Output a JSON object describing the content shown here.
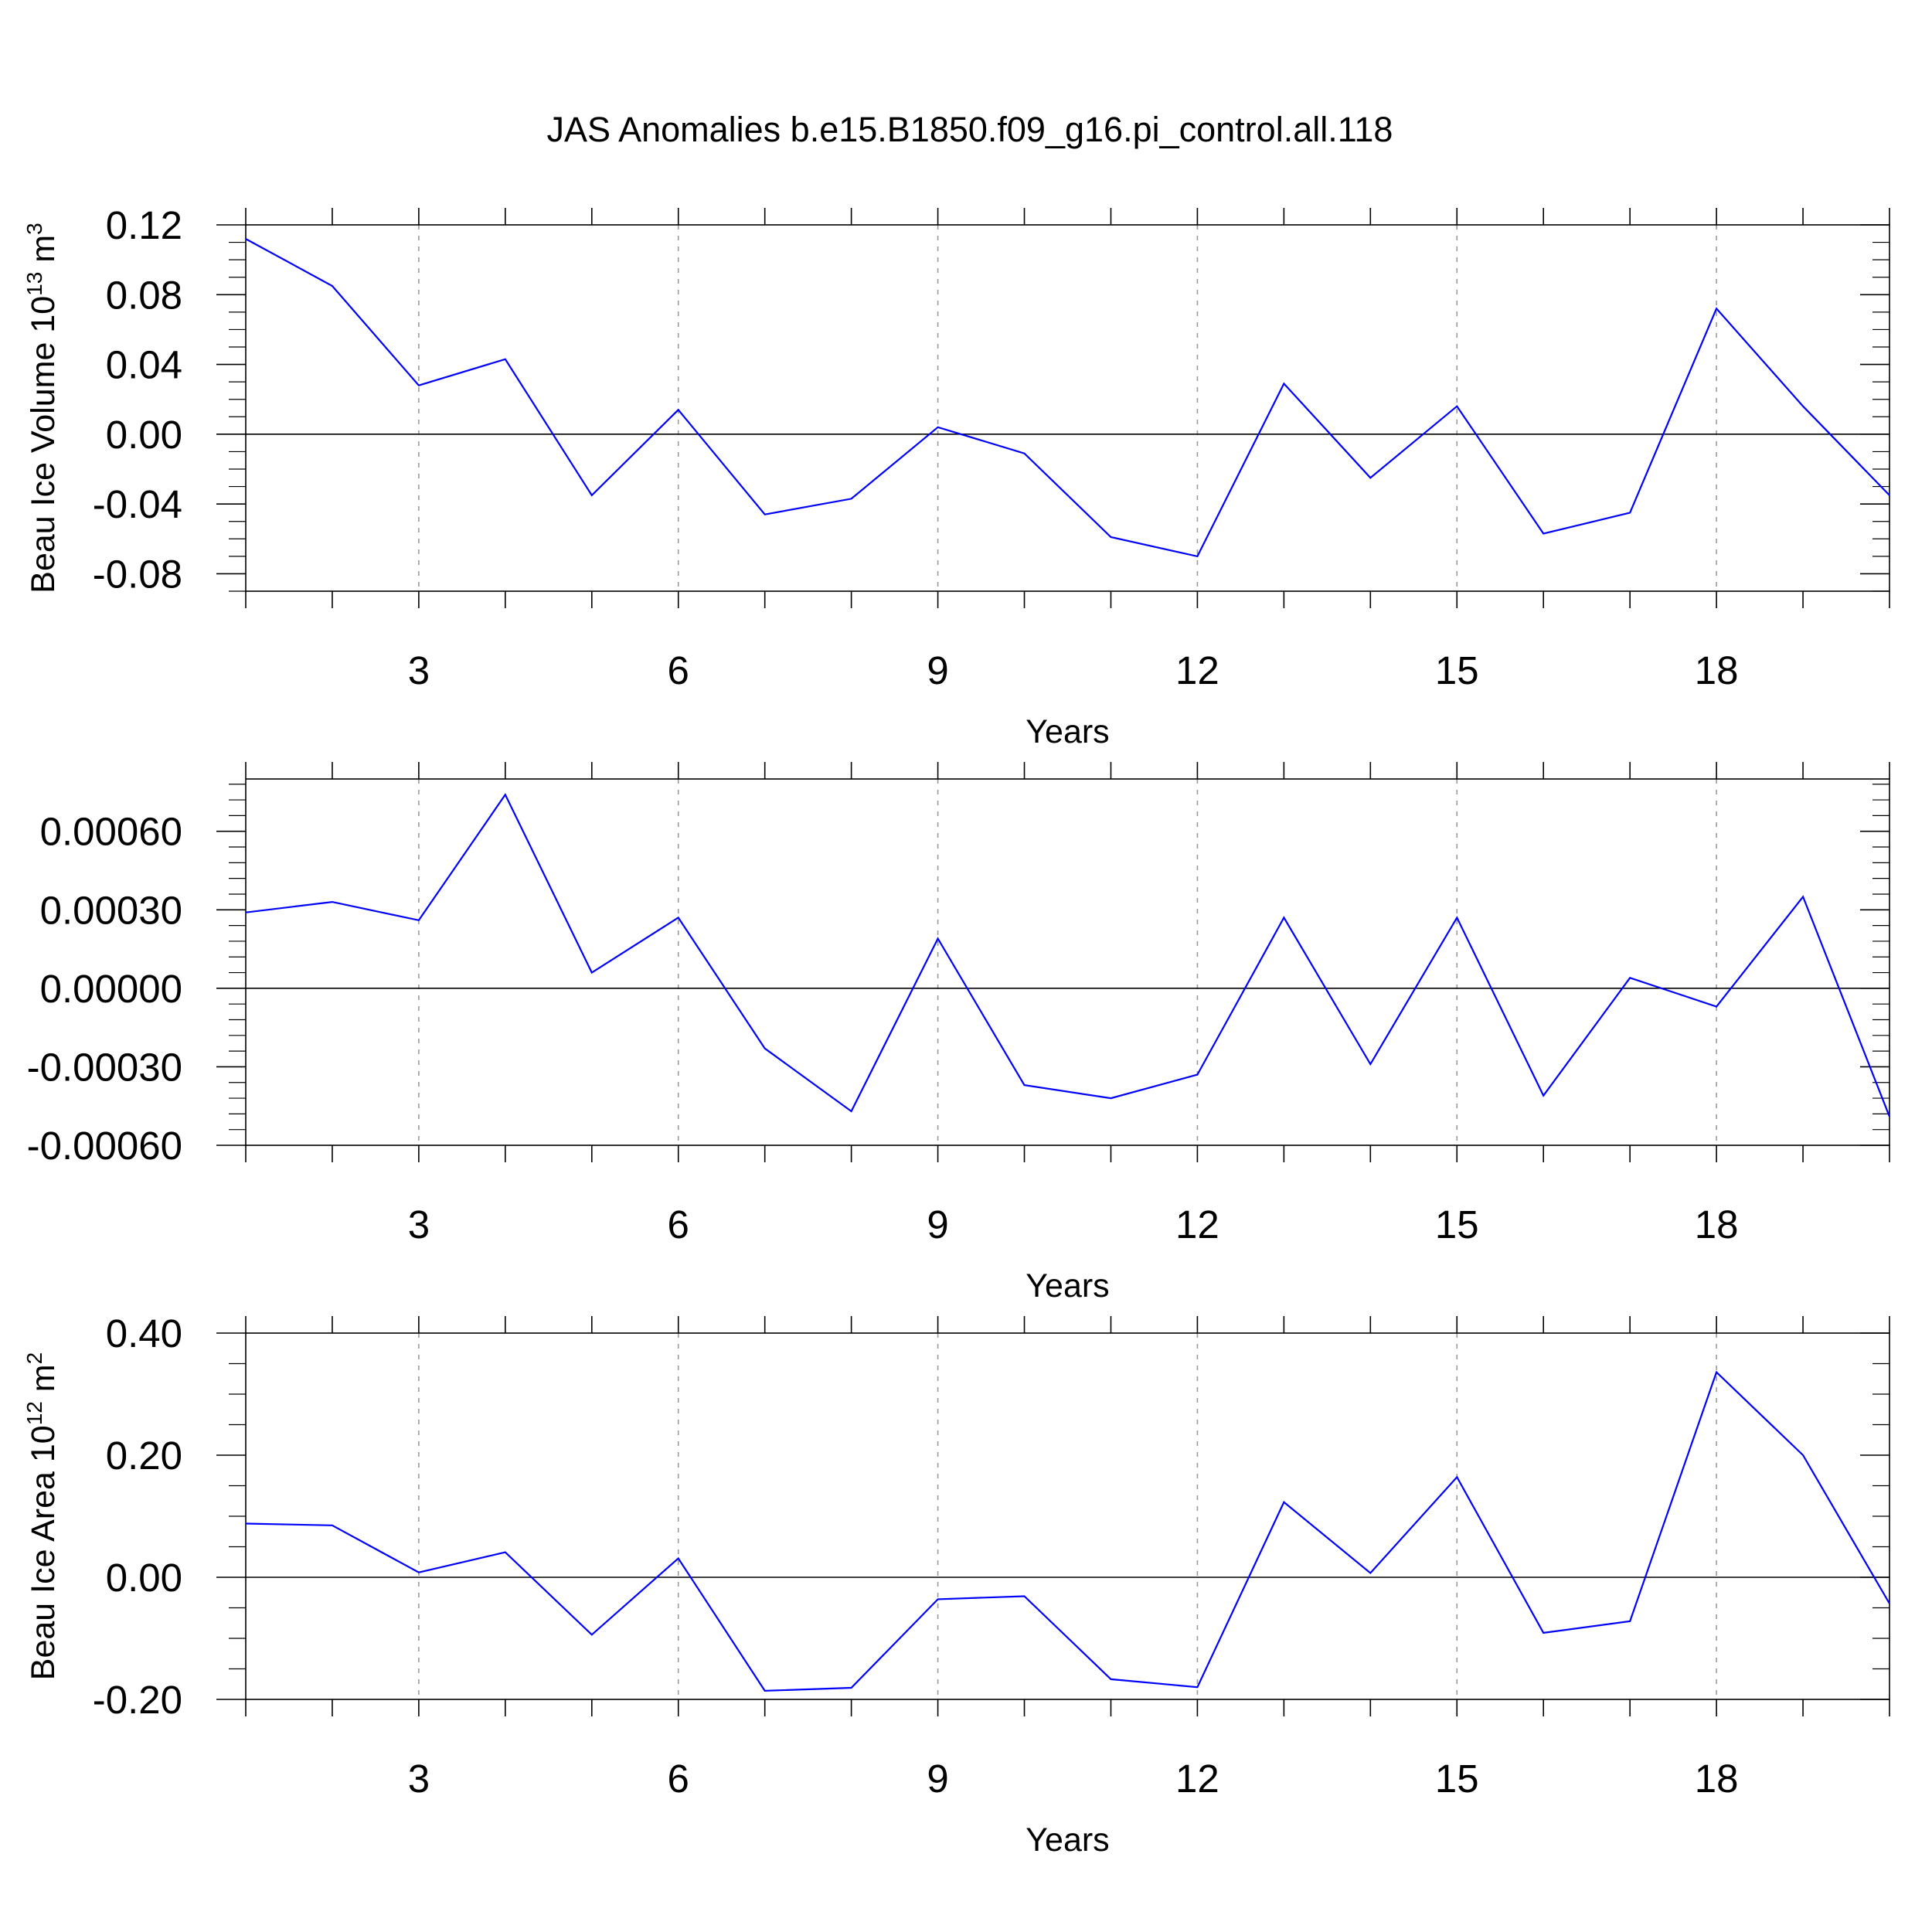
{
  "title": "JAS Anomalies b.e15.B1850.f09_g16.pi_control.all.118",
  "colors": {
    "series": "#0000ff",
    "grid": "#9a9a9a",
    "axes": "#000000"
  },
  "chart_data": [
    {
      "type": "line",
      "ylabel": "Beau Ice Volume 10",
      "ylabel_sup": "13",
      "ylabel_unit": " m",
      "ylabel_unit_sup": "3",
      "xlabel": "Years",
      "xlim": [
        1,
        20
      ],
      "ylim": [
        -0.09,
        0.12
      ],
      "y_ticks": [
        "-0.08",
        "-0.04",
        "0.00",
        "0.04",
        "0.08",
        "0.12"
      ],
      "y_tick_values": [
        -0.08,
        -0.04,
        0.0,
        0.04,
        0.08,
        0.12
      ],
      "x_ticks": [
        "3",
        "6",
        "9",
        "12",
        "15",
        "18"
      ],
      "x_tick_values": [
        3,
        6,
        9,
        12,
        15,
        18
      ],
      "vertical_grid": "dashed at labeled years",
      "series": [
        {
          "x": [
            1,
            2,
            3,
            4,
            5,
            6,
            7,
            8,
            9,
            10,
            11,
            12,
            13,
            14,
            15,
            16,
            17,
            18,
            19,
            20
          ],
          "values": [
            0.112,
            0.085,
            0.028,
            0.043,
            -0.035,
            0.014,
            -0.046,
            -0.037,
            0.004,
            -0.011,
            -0.059,
            -0.07,
            0.029,
            -0.025,
            0.016,
            -0.057,
            -0.045,
            0.072,
            0.016,
            -0.035
          ]
        }
      ]
    },
    {
      "type": "line",
      "ylabel": "",
      "xlabel": "Years",
      "xlim": [
        1,
        20
      ],
      "ylim": [
        -0.0006,
        0.0008
      ],
      "y_ticks": [
        "-0.00060",
        "-0.00030",
        "0.00000",
        "0.00030",
        "0.00060"
      ],
      "y_tick_values": [
        -0.0006,
        -0.0003,
        0.0,
        0.0003,
        0.0006
      ],
      "x_ticks": [
        "3",
        "6",
        "9",
        "12",
        "15",
        "18"
      ],
      "x_tick_values": [
        3,
        6,
        9,
        12,
        15,
        18
      ],
      "vertical_grid": "dashed at labeled years",
      "series": [
        {
          "x": [
            1,
            2,
            3,
            4,
            5,
            6,
            7,
            8,
            9,
            10,
            11,
            12,
            13,
            14,
            15,
            16,
            17,
            18,
            19,
            20
          ],
          "values": [
            0.00029,
            0.00033,
            0.00026,
            0.00074,
            6e-05,
            0.00027,
            -0.00023,
            -0.00047,
            0.00019,
            -0.00037,
            -0.00042,
            -0.00033,
            0.00027,
            -0.00029,
            0.00027,
            -0.00041,
            4e-05,
            -7e-05,
            0.00035,
            -0.00049
          ]
        }
      ]
    },
    {
      "type": "line",
      "ylabel": "Beau Ice Area 10",
      "ylabel_sup": "12",
      "ylabel_unit": " m",
      "ylabel_unit_sup": "2",
      "xlabel": "Years",
      "xlim": [
        1,
        20
      ],
      "ylim": [
        -0.2,
        0.4
      ],
      "y_ticks": [
        "-0.20",
        "0.00",
        "0.20",
        "0.40"
      ],
      "y_tick_values": [
        -0.2,
        0.0,
        0.2,
        0.4
      ],
      "x_ticks": [
        "3",
        "6",
        "9",
        "12",
        "15",
        "18"
      ],
      "x_tick_values": [
        3,
        6,
        9,
        12,
        15,
        18
      ],
      "vertical_grid": "dashed at labeled years",
      "series": [
        {
          "x": [
            1,
            2,
            3,
            4,
            5,
            6,
            7,
            8,
            9,
            10,
            11,
            12,
            13,
            14,
            15,
            16,
            17,
            18,
            19,
            20
          ],
          "values": [
            0.088,
            0.085,
            0.008,
            0.041,
            -0.094,
            0.031,
            -0.186,
            -0.181,
            -0.036,
            -0.031,
            -0.167,
            -0.18,
            0.123,
            0.007,
            0.164,
            -0.091,
            -0.072,
            0.336,
            0.2,
            -0.043
          ]
        }
      ]
    }
  ]
}
